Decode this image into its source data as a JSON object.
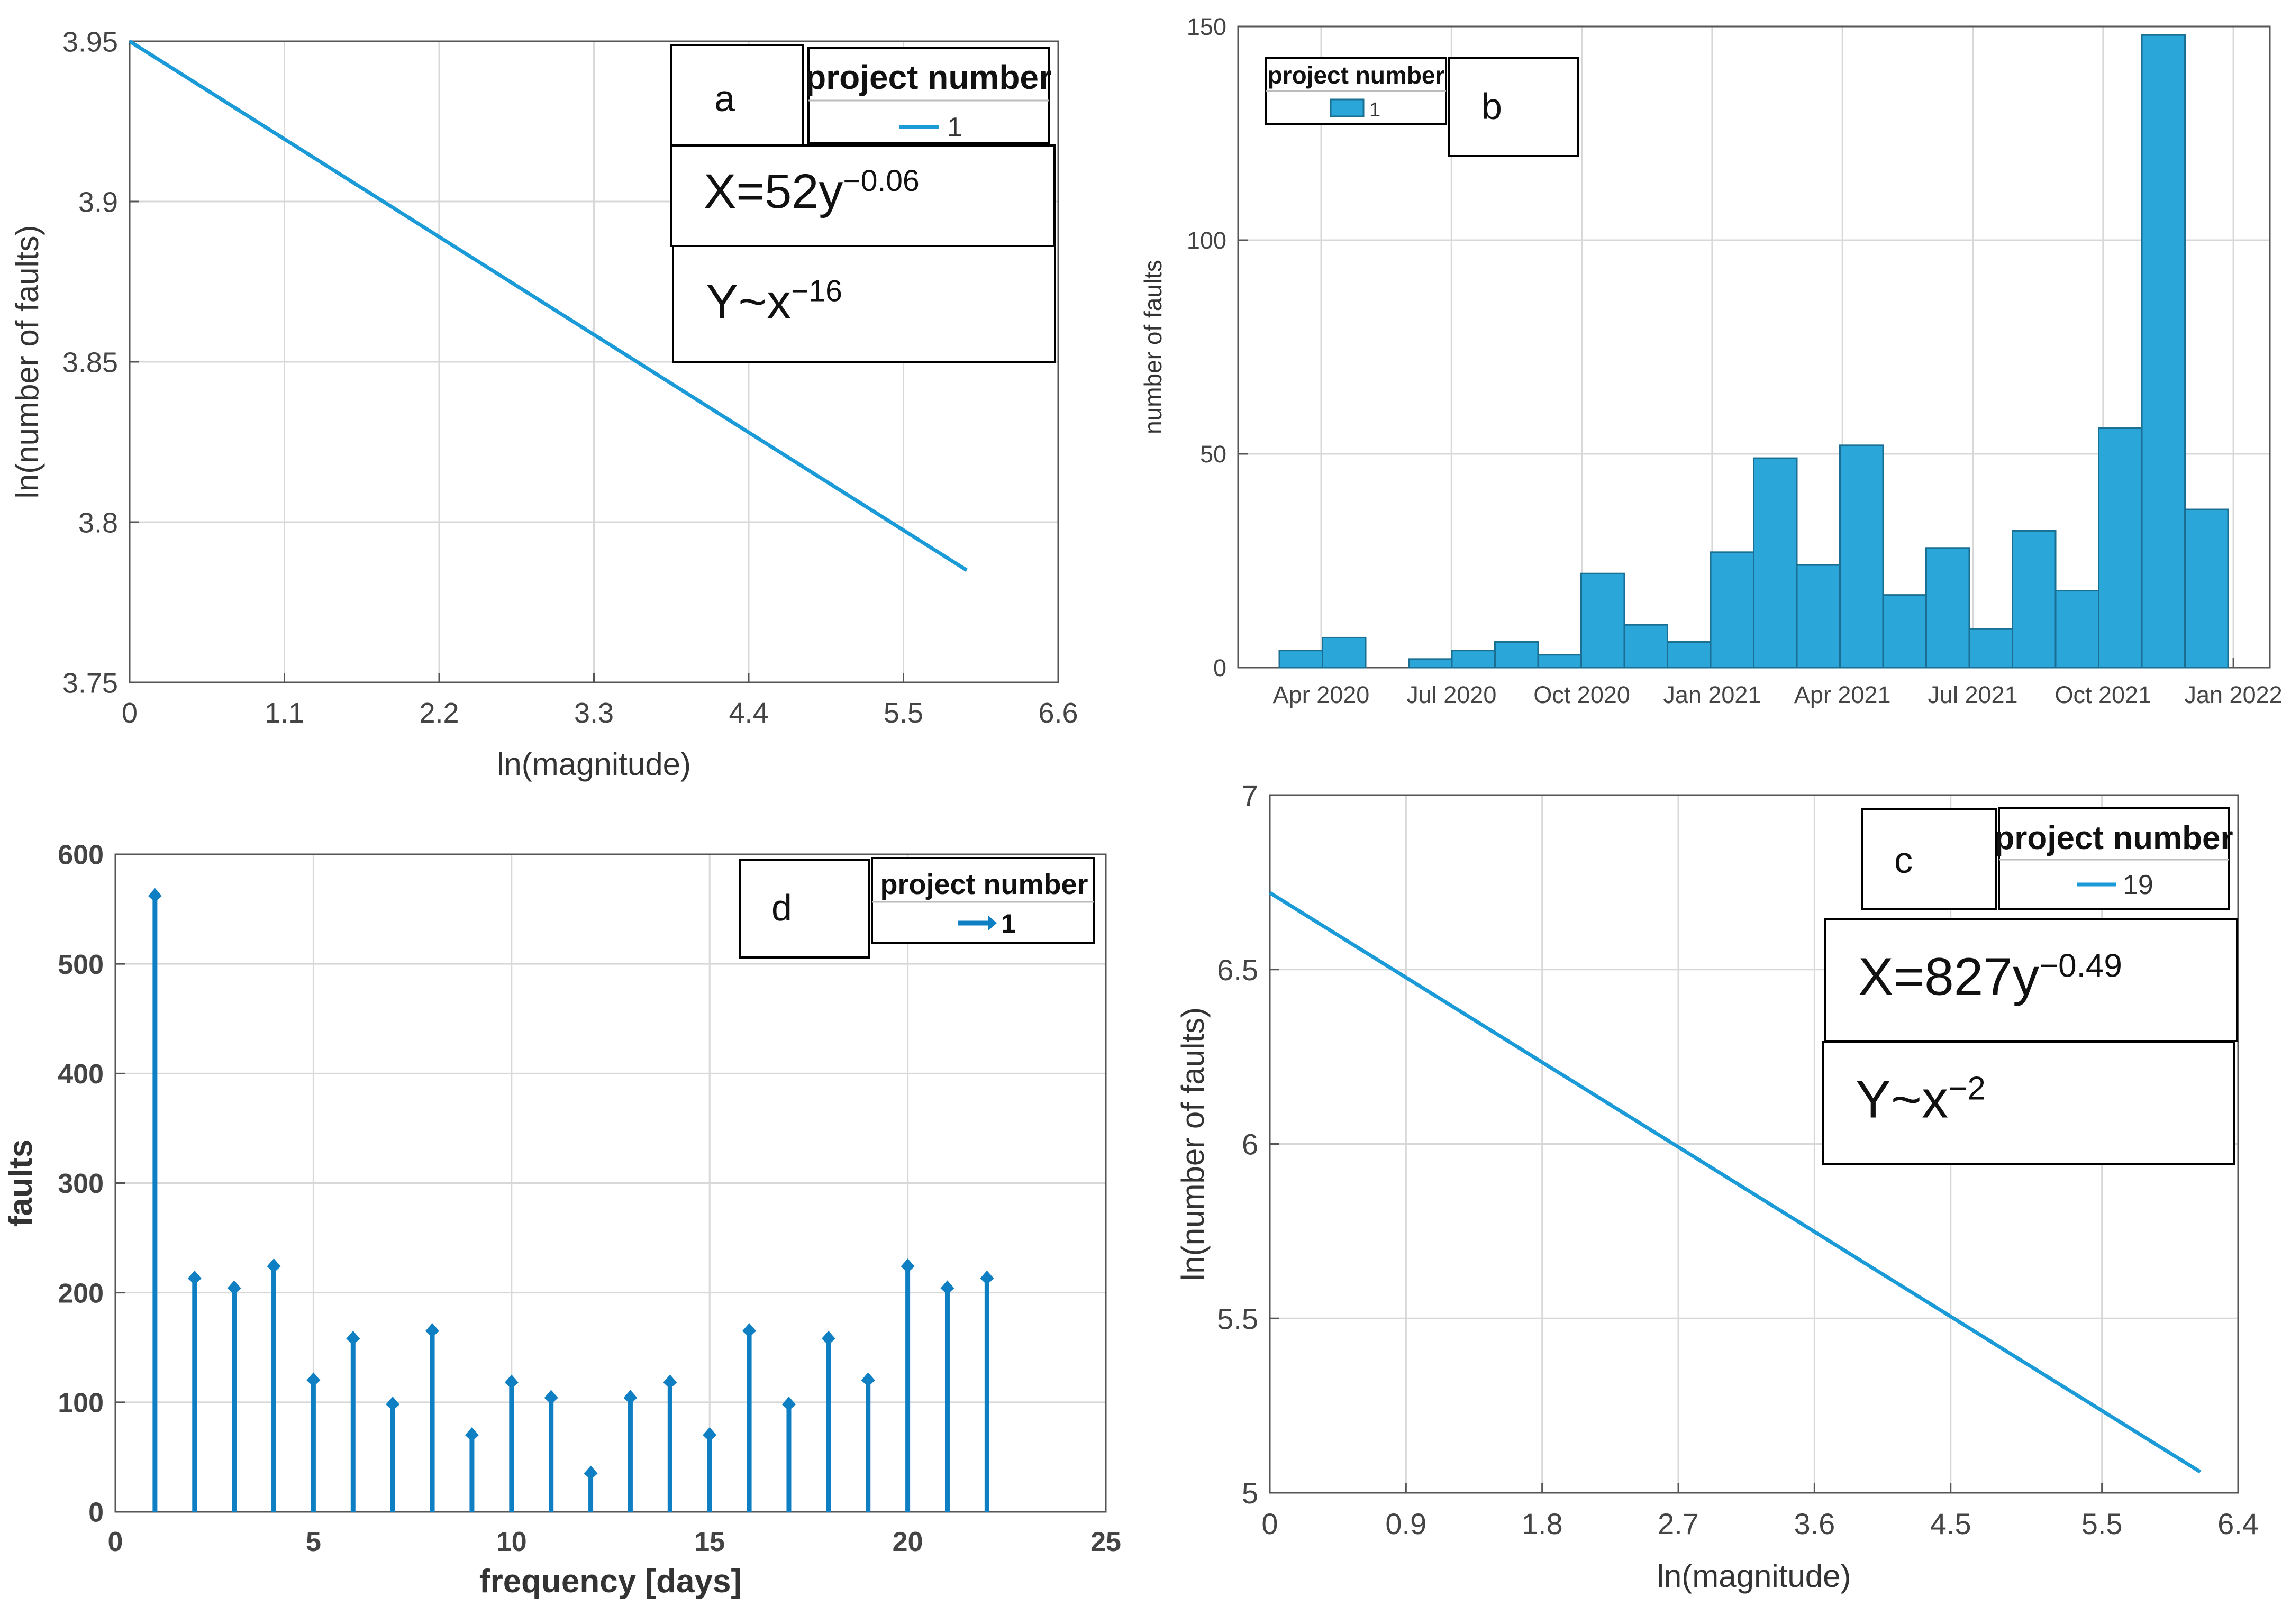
{
  "colors": {
    "series": "#1a9ad6",
    "bar_fill": "#2aa6d8",
    "bar_edge": "#1a6f93",
    "stem": "#0e7fc2",
    "axis": "#555555",
    "grid": "#d8d8d8",
    "box": "#000000"
  },
  "chart_data": [
    {
      "id": "a",
      "type": "line",
      "panel_label": "a",
      "xlabel": "ln(magnitude)",
      "ylabel": "ln(number of faults)",
      "xlim": [
        0,
        6.6
      ],
      "ylim": [
        3.75,
        3.95
      ],
      "xticks": [
        "0",
        "1.1",
        "2.2",
        "3.3",
        "4.4",
        "5.5",
        "6.6"
      ],
      "yticks": [
        "3.75",
        "3.8",
        "3.85",
        "3.9",
        "3.95"
      ],
      "series": [
        {
          "name": "1",
          "x": [
            0,
            5.95
          ],
          "y": [
            3.95,
            3.785
          ]
        }
      ],
      "legend_title": "project number",
      "legend_entry": "1",
      "annotations": [
        {
          "base": "X=52y",
          "exp": "−0.06"
        },
        {
          "base": "Y~x",
          "exp": "−16"
        }
      ]
    },
    {
      "id": "b",
      "type": "bar",
      "panel_label": "b",
      "xlabel": "",
      "ylabel": "number of faults",
      "ylim": [
        0,
        150
      ],
      "yticks": [
        "0",
        "50",
        "100",
        "150"
      ],
      "xticks": [
        "Apr 2020",
        "Jul 2020",
        "Oct 2020",
        "Jan 2021",
        "Apr 2021",
        "Jul 2021",
        "Oct 2021",
        "Jan 2022"
      ],
      "x_start": "Mar 2020",
      "bin_months": 1,
      "values": [
        4,
        7,
        0,
        2,
        4,
        6,
        3,
        22,
        10,
        6,
        27,
        49,
        24,
        52,
        17,
        28,
        9,
        32,
        18,
        56,
        148,
        37
      ],
      "legend_title": "project number",
      "legend_entry": "1"
    },
    {
      "id": "d",
      "type": "stem",
      "panel_label": "d",
      "xlabel": "frequency [days]",
      "ylabel": "faults",
      "xlim": [
        0,
        25
      ],
      "ylim": [
        0,
        600
      ],
      "xticks": [
        "0",
        "5",
        "10",
        "15",
        "20",
        "25"
      ],
      "yticks": [
        "0",
        "100",
        "200",
        "300",
        "400",
        "500",
        "600"
      ],
      "series": [
        {
          "name": "1",
          "x": [
            1,
            2,
            3,
            4,
            5,
            6,
            7,
            8,
            9,
            10,
            11,
            12,
            13,
            14,
            15,
            16,
            17,
            18,
            19,
            20,
            21,
            22
          ],
          "y": [
            562,
            213,
            204,
            224,
            120,
            158,
            98,
            165,
            70,
            118,
            104,
            35,
            104,
            118,
            70,
            165,
            98,
            158,
            120,
            224,
            204,
            213
          ]
        }
      ],
      "legend_title": "project number",
      "legend_entry": "1"
    },
    {
      "id": "c",
      "type": "line",
      "panel_label": "c",
      "xlabel": "ln(magnitude)",
      "ylabel": "ln(number of faults)",
      "xlim": [
        0,
        6.4
      ],
      "ylim": [
        5,
        7
      ],
      "xticks": [
        "0",
        "0.9",
        "1.8",
        "2.7",
        "3.6",
        "4.5",
        "5.5",
        "6.4"
      ],
      "yticks": [
        "5",
        "5.5",
        "6",
        "6.5",
        "7"
      ],
      "series": [
        {
          "name": "19",
          "x": [
            0,
            6.15
          ],
          "y": [
            6.72,
            5.06
          ]
        }
      ],
      "legend_title": "project number",
      "legend_entry": "19",
      "annotations": [
        {
          "base": "X=827y",
          "exp": "−0.49"
        },
        {
          "base": "Y~x",
          "exp": "−2"
        }
      ]
    }
  ]
}
